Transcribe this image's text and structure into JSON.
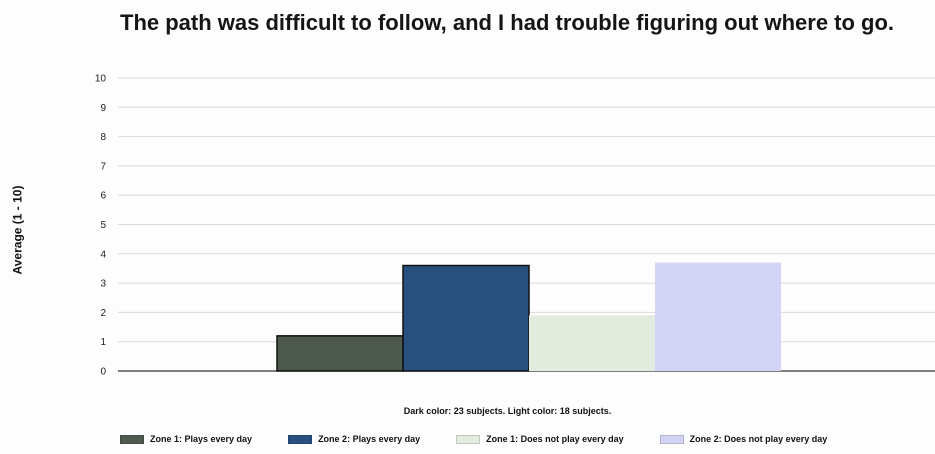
{
  "chart_data": {
    "type": "bar",
    "title": "The path was difficult to follow, and I had trouble figuring out where to go.",
    "ylabel": "Average (1 - 10)",
    "xlabel": "",
    "ylim": [
      0,
      10
    ],
    "yticks": [
      0,
      1,
      2,
      3,
      4,
      5,
      6,
      7,
      8,
      9,
      10
    ],
    "grid": true,
    "legend_position": "bottom",
    "note": "Dark color: 23 subjects. Light color: 18 subjects.",
    "series": [
      {
        "name": "Zone 1: Plays every day",
        "value": 1.2,
        "color": "#4f5a4e"
      },
      {
        "name": "Zone 2: Plays every day",
        "value": 3.6,
        "color": "#27507e"
      },
      {
        "name": "Zone 1: Does not play every day",
        "value": 1.9,
        "color": "#e2ebdd"
      },
      {
        "name": "Zone 2: Does not play every day",
        "value": 3.7,
        "color": "#d3d4f5"
      }
    ]
  }
}
